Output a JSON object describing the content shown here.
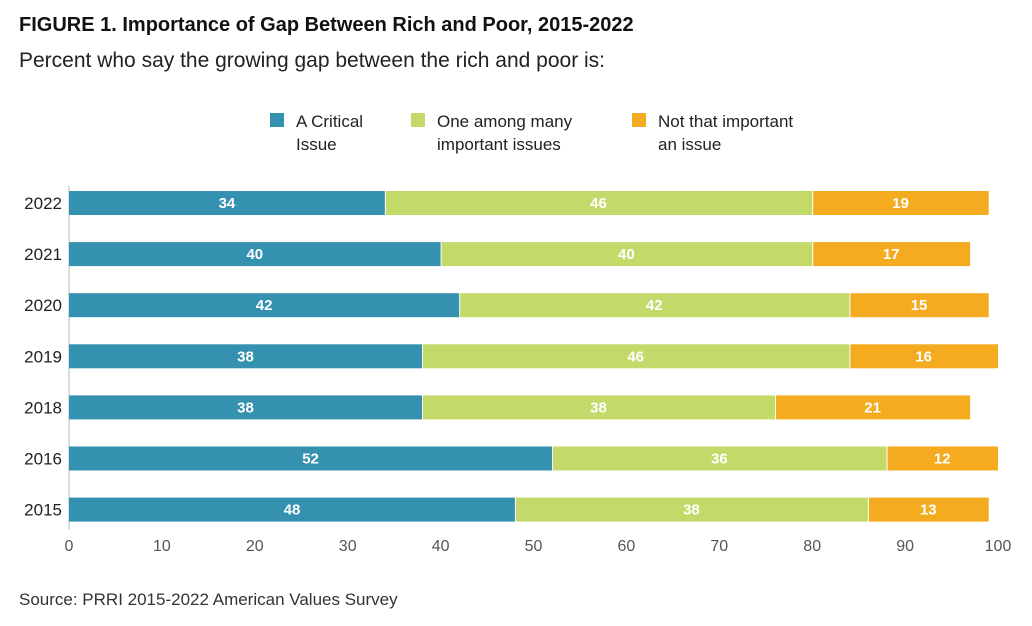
{
  "title": "FIGURE 1. Importance of Gap Between Rich and Poor, 2015-2022",
  "subtitle": "Percent who say the growing gap between the rich and poor is:",
  "source": "Source: PRRI 2015-2022 American Values Survey",
  "chart_data": {
    "type": "bar",
    "orientation": "horizontal",
    "stacked": true,
    "categories": [
      "2022",
      "2021",
      "2020",
      "2019",
      "2018",
      "2016",
      "2015"
    ],
    "series": [
      {
        "name": "A Critical Issue",
        "legend_lines": [
          "A Critical",
          "Issue"
        ],
        "color": "#3591b0",
        "values": [
          34,
          40,
          42,
          38,
          38,
          52,
          48
        ]
      },
      {
        "name": "One among many important issues",
        "legend_lines": [
          "One among many",
          "important issues"
        ],
        "color": "#c3d96a",
        "values": [
          46,
          40,
          42,
          46,
          38,
          36,
          38
        ]
      },
      {
        "name": "Not that important an issue",
        "legend_lines": [
          "Not that important",
          "an issue"
        ],
        "color": "#f5ab1f",
        "values": [
          19,
          17,
          15,
          16,
          21,
          12,
          13
        ]
      }
    ],
    "xlim": [
      0,
      100
    ],
    "xticks": [
      0,
      10,
      20,
      30,
      40,
      50,
      60,
      70,
      80,
      90,
      100
    ],
    "legend_position": "top",
    "grid": false
  }
}
